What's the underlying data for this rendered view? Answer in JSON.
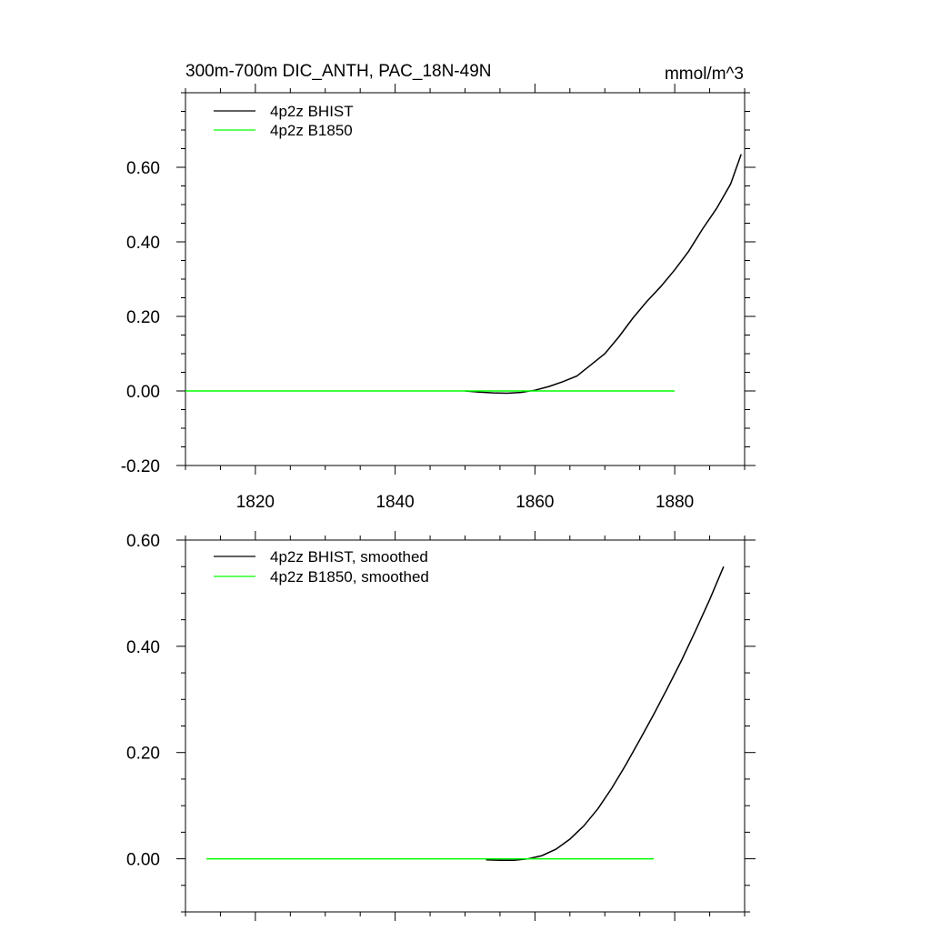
{
  "chart_data": [
    {
      "type": "line",
      "title": "300m-700m DIC_ANTH, PAC_18N-49N",
      "units": "mmol/m^3",
      "xlim": [
        1810,
        1890
      ],
      "ylim": [
        -0.2,
        0.8
      ],
      "x_ticks": [
        1820,
        1840,
        1860,
        1880
      ],
      "x_tick_labels": [
        "1820",
        "1840",
        "1860",
        "1880"
      ],
      "y_ticks": [
        -0.2,
        0.0,
        0.2,
        0.4,
        0.6
      ],
      "y_tick_labels": [
        "-0.20",
        "0.00",
        "0.20",
        "0.40",
        "0.60"
      ],
      "legend_position": "top-left",
      "series": [
        {
          "name": "4p2z BHIST",
          "color": "#000000",
          "x": [
            1850,
            1852,
            1854,
            1856,
            1858,
            1860,
            1862,
            1864,
            1866,
            1868,
            1870,
            1872,
            1874,
            1876,
            1878,
            1880,
            1882,
            1884,
            1886,
            1888,
            1889.5
          ],
          "y": [
            0.0,
            -0.003,
            -0.005,
            -0.006,
            -0.004,
            0.002,
            0.012,
            0.025,
            0.04,
            0.07,
            0.1,
            0.145,
            0.195,
            0.24,
            0.28,
            0.325,
            0.375,
            0.435,
            0.49,
            0.555,
            0.635
          ]
        },
        {
          "name": "4p2z B1850",
          "color": "#00ff00",
          "x": [
            1810,
            1880
          ],
          "y": [
            0.0,
            0.0
          ]
        }
      ]
    },
    {
      "type": "line",
      "title": "",
      "units": "",
      "xlim": [
        1810,
        1890
      ],
      "ylim": [
        -0.1,
        0.6
      ],
      "x_ticks": [
        1820,
        1840,
        1860,
        1880
      ],
      "x_tick_labels": [
        "",
        "",
        "",
        ""
      ],
      "y_ticks": [
        0.0,
        0.2,
        0.4,
        0.6
      ],
      "y_tick_labels": [
        "0.00",
        "0.20",
        "0.40",
        "0.60"
      ],
      "legend_position": "top-left",
      "series": [
        {
          "name": "4p2z BHIST, smoothed",
          "color": "#000000",
          "x": [
            1853,
            1855,
            1857,
            1859,
            1861,
            1863,
            1865,
            1867,
            1869,
            1871,
            1873,
            1875,
            1877,
            1879,
            1881,
            1883,
            1885,
            1887
          ],
          "y": [
            -0.002,
            -0.003,
            -0.003,
            0.0,
            0.006,
            0.018,
            0.037,
            0.062,
            0.094,
            0.133,
            0.177,
            0.224,
            0.272,
            0.322,
            0.374,
            0.43,
            0.488,
            0.55
          ]
        },
        {
          "name": "4p2z B1850, smoothed",
          "color": "#00ff00",
          "x": [
            1813,
            1877
          ],
          "y": [
            0.0,
            0.0
          ]
        }
      ]
    }
  ]
}
